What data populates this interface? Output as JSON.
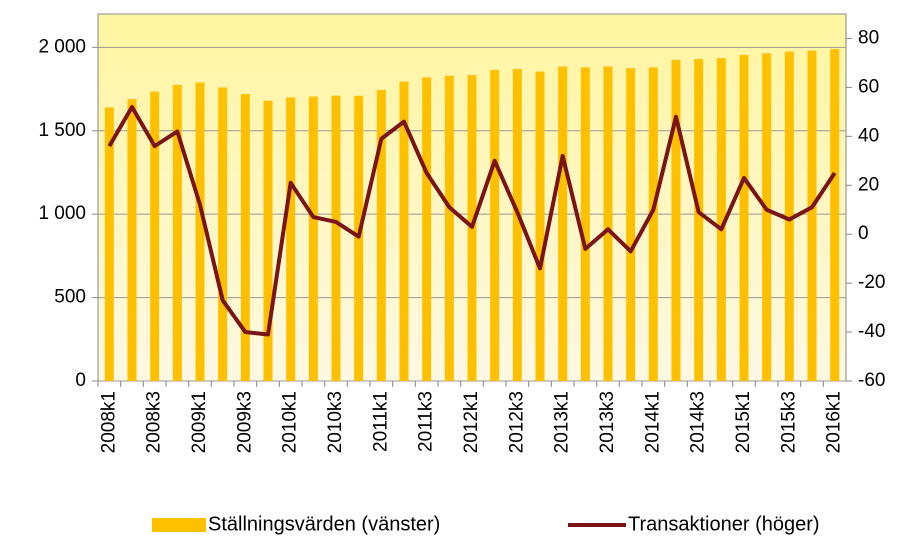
{
  "chart_data": {
    "type": "bar",
    "categories": [
      "2008k1",
      null,
      "2008k3",
      null,
      "2009k1",
      null,
      "2009k3",
      null,
      "2010k1",
      null,
      "2010k3",
      null,
      "2011k1",
      null,
      "2011k3",
      null,
      "2012k1",
      null,
      "2012k3",
      null,
      "2013k1",
      null,
      "2013k3",
      null,
      "2014k1",
      null,
      "2014k3",
      null,
      "2015k1",
      null,
      "2015k3",
      null,
      "2016k1"
    ],
    "series": [
      {
        "name": "Ställningsvärden (vänster)",
        "type": "bar",
        "color": "#ffc000",
        "values": [
          1640,
          1690,
          1735,
          1775,
          1790,
          1760,
          1720,
          1680,
          1700,
          1705,
          1710,
          1710,
          1745,
          1795,
          1820,
          1830,
          1835,
          1865,
          1870,
          1855,
          1885,
          1880,
          1885,
          1875,
          1880,
          1925,
          1930,
          1935,
          1955,
          1965,
          1975,
          1980,
          1990
        ]
      },
      {
        "name": "Transaktioner (höger)",
        "type": "line",
        "axis": "y2",
        "color": "#7b1416",
        "values": [
          36,
          52,
          36,
          42,
          12,
          -27,
          -40,
          -41,
          21,
          7,
          5,
          -1,
          39,
          46,
          25,
          11,
          3,
          30,
          9,
          -14,
          32,
          -6,
          2,
          -7,
          10,
          48,
          9,
          2,
          23,
          10,
          6,
          11,
          25
        ]
      }
    ],
    "ylim": [
      0,
      2200
    ],
    "yticks": [
      0,
      {
        "value": 500,
        "label": "500"
      },
      {
        "value": 1000,
        "label": "1 000"
      },
      {
        "value": 1500,
        "label": "1 500"
      },
      {
        "value": 2000,
        "label": "2 000"
      }
    ],
    "y2lim": [
      -60,
      90
    ],
    "y2ticks": [
      -60,
      -40,
      -20,
      0,
      20,
      40,
      60,
      80
    ],
    "grid": true,
    "legend": "bottom"
  }
}
